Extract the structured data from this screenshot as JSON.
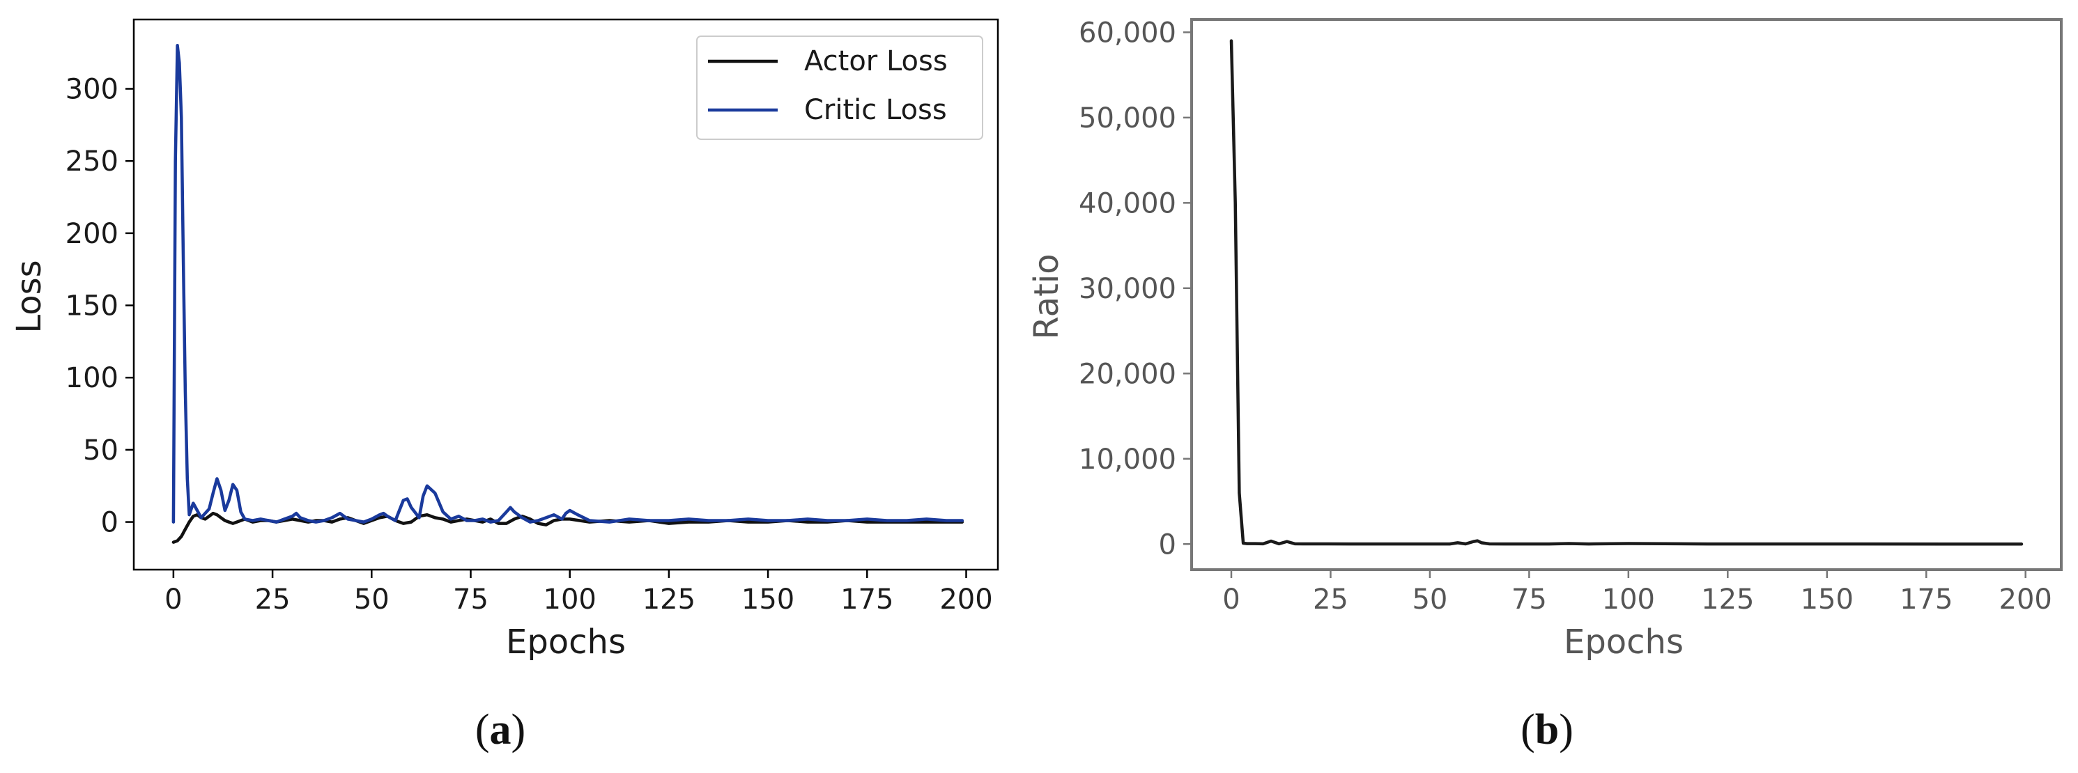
{
  "panels": [
    {
      "open": "(",
      "letter": "a",
      "close": ")"
    },
    {
      "open": "(",
      "letter": "b",
      "close": ")"
    }
  ],
  "chart_data": [
    {
      "type": "line",
      "title": "",
      "xlabel": "Epochs",
      "ylabel": "Loss",
      "xlim": [
        -10,
        208
      ],
      "ylim": [
        -33,
        348
      ],
      "xticks": [
        0,
        25,
        50,
        75,
        100,
        125,
        150,
        175,
        200
      ],
      "yticks": [
        0,
        50,
        100,
        150,
        200,
        250,
        300
      ],
      "xtick_labels": [
        "0",
        "25",
        "50",
        "75",
        "100",
        "125",
        "150",
        "175",
        "200"
      ],
      "ytick_labels": [
        "0",
        "50",
        "100",
        "150",
        "200",
        "250",
        "300"
      ],
      "grid": false,
      "legend_position": "top-right",
      "series": [
        {
          "name": "Actor Loss",
          "color": "#111111",
          "x": [
            0,
            1,
            2,
            3,
            4,
            5,
            6,
            7,
            8,
            9,
            10,
            11,
            12,
            13,
            14,
            15,
            16,
            17,
            18,
            19,
            20,
            22,
            24,
            26,
            28,
            30,
            32,
            34,
            36,
            38,
            40,
            42,
            44,
            46,
            48,
            50,
            52,
            54,
            56,
            58,
            60,
            62,
            64,
            66,
            68,
            70,
            72,
            74,
            76,
            78,
            80,
            82,
            84,
            86,
            88,
            90,
            92,
            94,
            96,
            98,
            100,
            105,
            110,
            115,
            120,
            125,
            130,
            135,
            140,
            145,
            150,
            155,
            160,
            165,
            170,
            175,
            180,
            185,
            190,
            195,
            199
          ],
          "values": [
            -14,
            -13,
            -10,
            -5,
            0,
            4,
            5,
            3,
            2,
            4,
            6,
            5,
            3,
            1,
            0,
            -1,
            0,
            1,
            2,
            1,
            0,
            1,
            1,
            0,
            1,
            2,
            1,
            0,
            1,
            1,
            0,
            2,
            3,
            1,
            -1,
            1,
            3,
            4,
            1,
            -1,
            0,
            4,
            5,
            3,
            2,
            0,
            1,
            2,
            1,
            0,
            2,
            -1,
            -1,
            2,
            4,
            2,
            -1,
            -2,
            1,
            2,
            2,
            0,
            1,
            0,
            1,
            -1,
            0,
            0,
            1,
            0,
            0,
            1,
            0,
            0,
            1,
            0,
            0,
            0,
            0,
            0,
            0
          ]
        },
        {
          "name": "Critic Loss",
          "color": "#1a3a9c",
          "x": [
            0,
            0.5,
            1,
            1.5,
            2,
            2.5,
            3,
            3.5,
            4,
            5,
            6,
            7,
            8,
            9,
            10,
            11,
            12,
            13,
            14,
            15,
            16,
            17,
            18,
            20,
            22,
            24,
            26,
            28,
            30,
            31,
            32,
            34,
            36,
            38,
            40,
            42,
            44,
            46,
            48,
            50,
            52,
            53,
            54,
            56,
            57,
            58,
            59,
            60,
            62,
            63,
            64,
            66,
            68,
            70,
            72,
            74,
            76,
            78,
            80,
            82,
            84,
            85,
            86,
            88,
            90,
            92,
            94,
            96,
            98,
            99,
            100,
            102,
            105,
            110,
            115,
            120,
            125,
            130,
            135,
            140,
            145,
            150,
            155,
            160,
            165,
            170,
            175,
            180,
            185,
            190,
            195,
            199
          ],
          "values": [
            0,
            250,
            330,
            318,
            280,
            180,
            90,
            30,
            5,
            13,
            8,
            3,
            6,
            9,
            20,
            30,
            22,
            8,
            15,
            26,
            22,
            7,
            2,
            1,
            2,
            1,
            0,
            2,
            4,
            6,
            3,
            1,
            0,
            1,
            3,
            6,
            2,
            1,
            0,
            2,
            5,
            6,
            4,
            1,
            8,
            15,
            16,
            10,
            3,
            18,
            25,
            20,
            7,
            2,
            4,
            1,
            1,
            2,
            0,
            1,
            7,
            10,
            7,
            3,
            0,
            1,
            3,
            5,
            2,
            6,
            8,
            5,
            1,
            0,
            2,
            1,
            1,
            2,
            1,
            1,
            2,
            1,
            1,
            2,
            1,
            1,
            2,
            1,
            1,
            2,
            1,
            1
          ]
        }
      ]
    },
    {
      "type": "line",
      "title": "",
      "xlabel": "Epochs",
      "ylabel": "Ratio",
      "xlim": [
        -10,
        209
      ],
      "ylim": [
        -3000,
        61500
      ],
      "xticks": [
        0,
        25,
        50,
        75,
        100,
        125,
        150,
        175,
        200
      ],
      "yticks": [
        0,
        10000,
        20000,
        30000,
        40000,
        50000,
        60000
      ],
      "xtick_labels": [
        "0",
        "25",
        "50",
        "75",
        "100",
        "125",
        "150",
        "175",
        "200"
      ],
      "ytick_labels": [
        "0",
        "10,000",
        "20,000",
        "30,000",
        "40,000",
        "50,000",
        "60,000"
      ],
      "grid": false,
      "series": [
        {
          "color": "#1a1a1a",
          "x": [
            0,
            1,
            2,
            3,
            4,
            6,
            8,
            10,
            12,
            14,
            16,
            18,
            20,
            30,
            40,
            50,
            55,
            57,
            59,
            61,
            62,
            63,
            65,
            70,
            80,
            85,
            90,
            100,
            120,
            150,
            199
          ],
          "values": [
            59000,
            40000,
            6000,
            100,
            50,
            50,
            30,
            350,
            30,
            300,
            30,
            20,
            20,
            10,
            10,
            10,
            10,
            150,
            20,
            300,
            380,
            150,
            20,
            10,
            10,
            60,
            10,
            60,
            10,
            10,
            0
          ]
        }
      ]
    }
  ]
}
